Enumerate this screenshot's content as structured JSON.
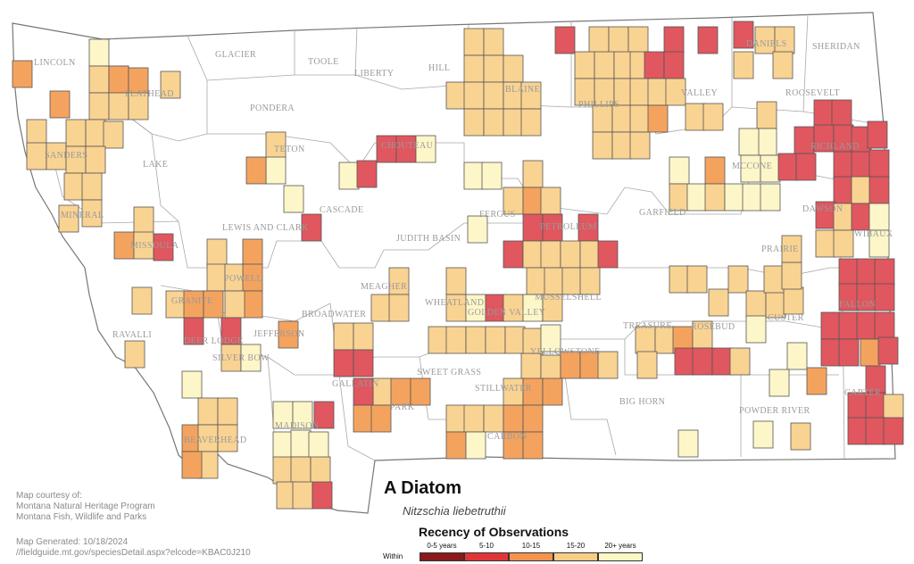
{
  "map": {
    "title": "A Diatom",
    "scientific_name": "Nitzschia liebetruthii",
    "credits": [
      "Map courtesy of:",
      "Montana Natural Heritage Program",
      "Montana Fish, Wildlife and Parks"
    ],
    "generated": "Map Generated: 10/18/2024",
    "url": "//fieldguide.mt.gov/speciesDetail.aspx?elcode=KBAC0J210"
  },
  "legend": {
    "title": "Recency of Observations",
    "within_label": "Within",
    "categories": [
      {
        "label": "0-5 years",
        "color": "#8b1a1a"
      },
      {
        "label": "5-10",
        "color": "#e0363a"
      },
      {
        "label": "10-15",
        "color": "#f4934d"
      },
      {
        "label": "15-20",
        "color": "#f8cd85"
      },
      {
        "label": "20+ years",
        "color": "#fdf7c6"
      }
    ]
  },
  "counties": [
    "LINCOLN",
    "GLACIER",
    "TOOLE",
    "LIBERTY",
    "HILL",
    "BLAINE",
    "PHILLIPS",
    "VALLEY",
    "DANIELS",
    "SHERIDAN",
    "ROOSEVELT",
    "FLATHEAD",
    "PONDERA",
    "TETON",
    "CHOUTEAU",
    "SANDERS",
    "LAKE",
    "MINERAL",
    "MISSOULA",
    "CASCADE",
    "LEWIS AND CLARK",
    "JUDITH BASIN",
    "FERGUS",
    "PETROLEUM",
    "GARFIELD",
    "MCCONE",
    "RICHLAND",
    "DAWSON",
    "WIBAUX",
    "PRAIRIE",
    "POWELL",
    "GRANITE",
    "RAVALLI",
    "DEER LODGE",
    "SILVER BOW",
    "JEFFERSON",
    "BROADWATER",
    "MEAGHER",
    "WHEATLAND",
    "GOLDEN VALLEY",
    "MUSSELSHELL",
    "TREASURE",
    "ROSEBUD",
    "CUSTER",
    "FALLON",
    "YELLOWSTONE",
    "STILLWATER",
    "SWEET GRASS",
    "PARK",
    "GALLATIN",
    "MADISON",
    "BEAVERHEAD",
    "CARBON",
    "BIG HORN",
    "POWDER RIVER",
    "CARTER"
  ],
  "observation_cells": [
    {
      "row": 0,
      "col": 0,
      "recency": "15-20"
    },
    {
      "row": 0,
      "col": 1,
      "recency": "10-15"
    }
  ]
}
